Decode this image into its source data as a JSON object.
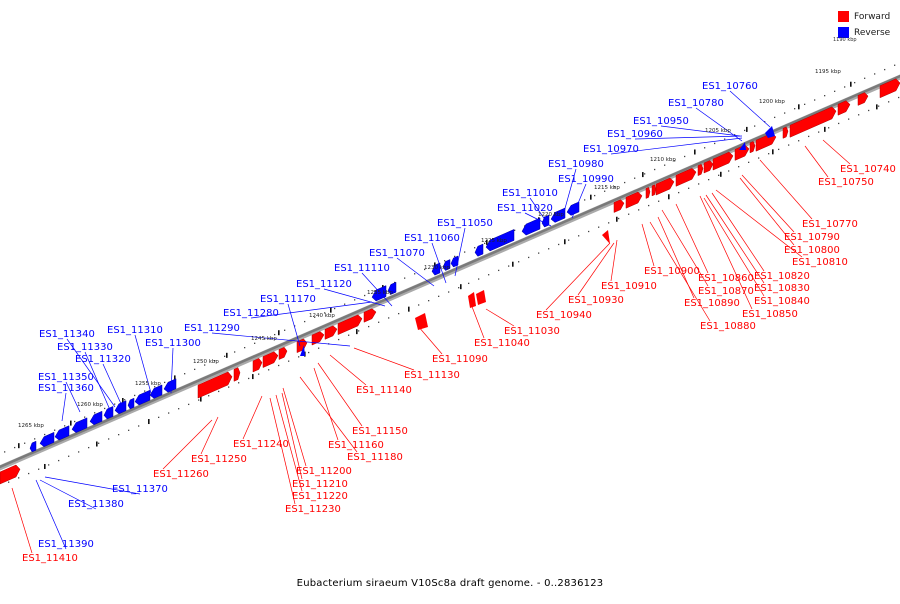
{
  "legend": {
    "forward_label": "Forward",
    "reverse_label": "Reverse",
    "forward_color": "#ff0000",
    "reverse_color": "#0000ff"
  },
  "caption": "Eubacterium siraeum V10Sc8a draft genome. - 0..2836123",
  "corner_kbp": "1190 kbp",
  "axis_color": "#7a7a7a",
  "ticks": [
    "1195 kbp",
    "1200 kbp",
    "1205 kbp",
    "1210 kbp",
    "1215 kbp",
    "1220 kbp",
    "1225 kbp",
    "1230 kbp",
    "1235 kbp",
    "1240 kbp",
    "1245 kbp",
    "1250 kbp",
    "1255 kbp",
    "1260 kbp",
    "1265 kbp"
  ],
  "reverse_labels": [
    "ES1_10760",
    "ES1_10780",
    "ES1_10950",
    "ES1_10960",
    "ES1_10970",
    "ES1_10980",
    "ES1_10990",
    "ES1_11010",
    "ES1_11020",
    "ES1_11050",
    "ES1_11060",
    "ES1_11070",
    "ES1_11110",
    "ES1_11120",
    "ES1_11170",
    "ES1_11280",
    "ES1_11290",
    "ES1_11300",
    "ES1_11310",
    "ES1_11340",
    "ES1_11330",
    "ES1_11320",
    "ES1_11350",
    "ES1_11360",
    "ES1_11370",
    "ES1_11380",
    "ES1_11390"
  ],
  "forward_labels": [
    "ES1_10740",
    "ES1_10750",
    "ES1_10770",
    "ES1_10790",
    "ES1_10800",
    "ES1_10810",
    "ES1_10820",
    "ES1_10830",
    "ES1_10840",
    "ES1_10850",
    "ES1_10860",
    "ES1_10870",
    "ES1_10880",
    "ES1_10890",
    "ES1_10900",
    "ES1_10910",
    "ES1_10930",
    "ES1_10940",
    "ES1_11030",
    "ES1_11040",
    "ES1_11090",
    "ES1_11130",
    "ES1_11140",
    "ES1_11150",
    "ES1_11160",
    "ES1_11180",
    "ES1_11200",
    "ES1_11210",
    "ES1_11220",
    "ES1_11230",
    "ES1_11240",
    "ES1_11250",
    "ES1_11260",
    "ES1_11410"
  ]
}
